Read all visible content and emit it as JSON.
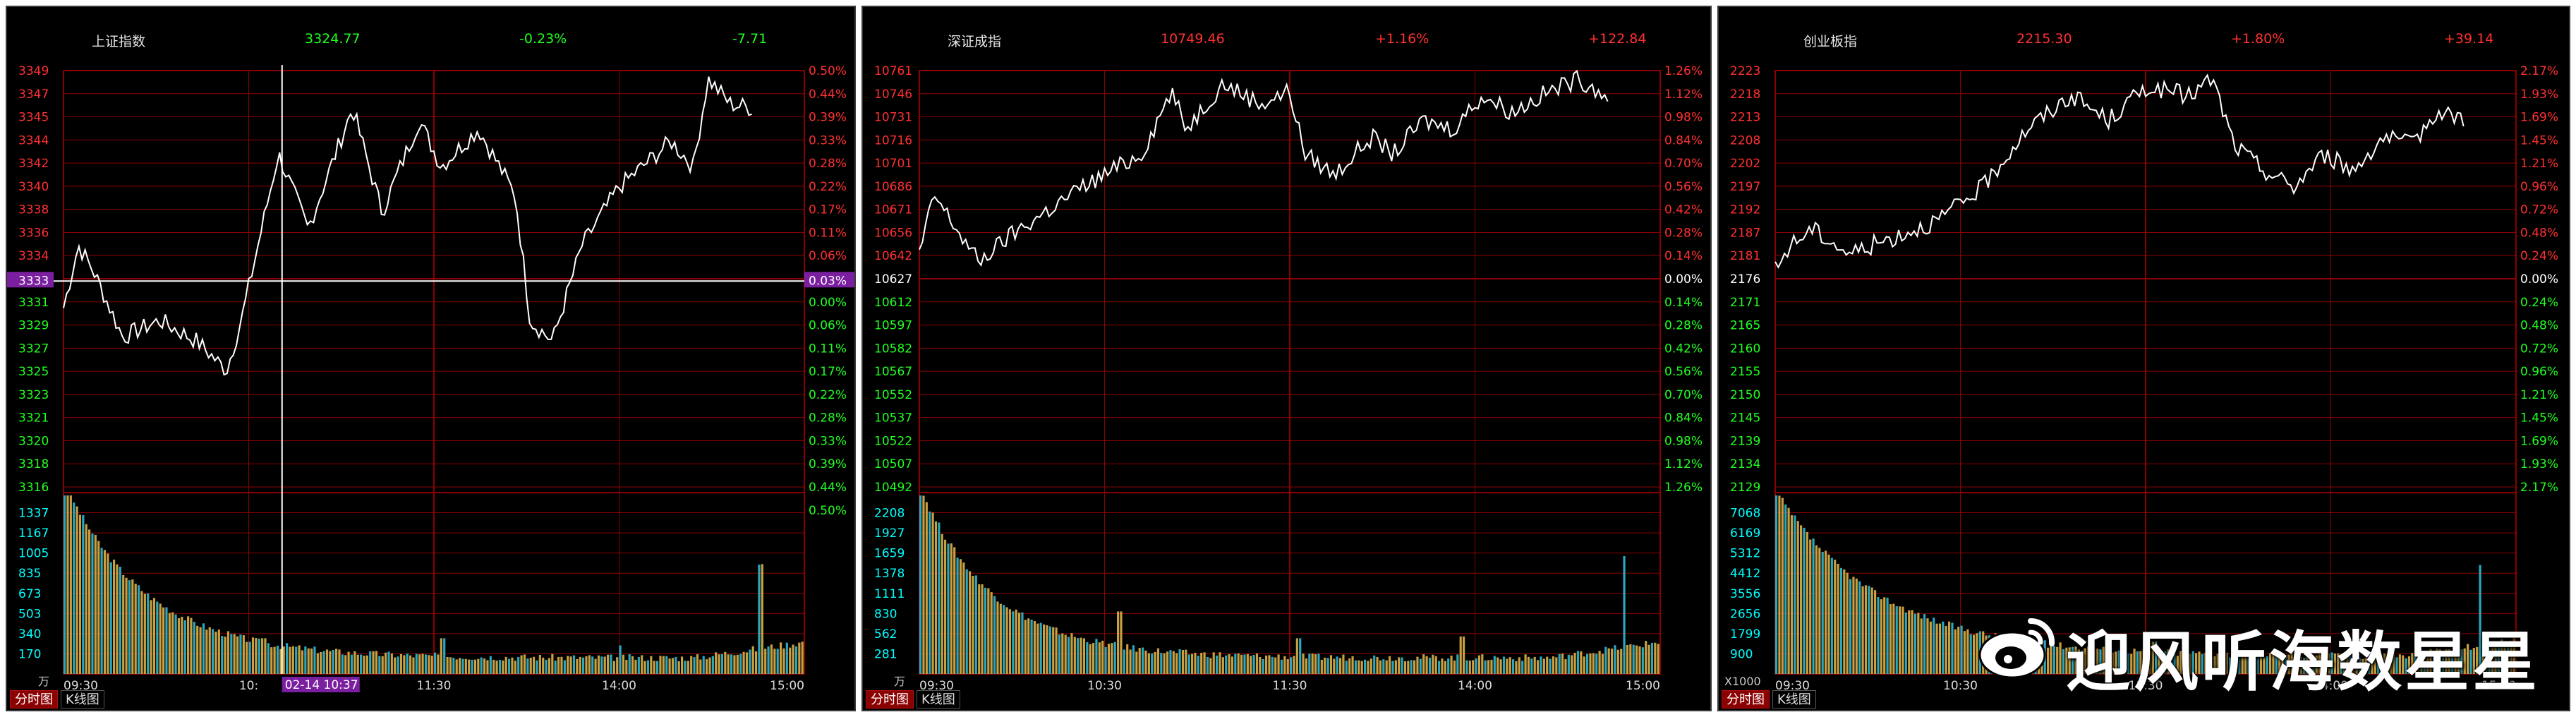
{
  "colors": {
    "up": "#ff3030",
    "down": "#20ff20",
    "grid": "#8b0000",
    "price_line": "#ffffff",
    "vol_label": "#00ffff",
    "vol_bar_a": "#c8a040",
    "vol_bar_b": "#2aa8c0"
  },
  "panels": [
    {
      "name": "上证指数",
      "last": "3324.77",
      "pct": "-0.23%",
      "chg": "-7.71",
      "quote_color": "#20ff20",
      "price_ticks": [
        "3349",
        "3347",
        "3345",
        "3344",
        "3342",
        "3340",
        "3338",
        "3336",
        "3334",
        "3332",
        "3331",
        "3329",
        "3327",
        "3325",
        "3323",
        "3321",
        "3320",
        "3318",
        "3316"
      ],
      "pct_ticks": [
        "0.50%",
        "0.44%",
        "0.39%",
        "0.33%",
        "0.28%",
        "0.22%",
        "0.17%",
        "0.11%",
        "0.06%",
        "0.03%",
        "0.00%",
        "0.06%",
        "0.11%",
        "0.17%",
        "0.22%",
        "0.28%",
        "0.33%",
        "0.39%",
        "0.44%",
        "0.50%"
      ],
      "highlight_price": "3333",
      "highlight_pct": "0.03%",
      "vol_ticks": [
        "1337",
        "1167",
        "1005",
        "835",
        "673",
        "503",
        "340",
        "170"
      ],
      "vol_unit": "万",
      "time_ticks": [
        "09:30",
        "10:",
        "11:30",
        "14:00",
        "15:00"
      ],
      "cursor_label": "02-14 10:37",
      "tabs": [
        "分时图",
        "K线图"
      ]
    },
    {
      "name": "深证成指",
      "last": "10749.46",
      "pct": "+1.16%",
      "chg": "+122.84",
      "quote_color": "#ff3030",
      "price_ticks": [
        "10761",
        "10746",
        "10731",
        "10716",
        "10701",
        "10686",
        "10671",
        "10656",
        "10642",
        "10627",
        "10612",
        "10597",
        "10582",
        "10567",
        "10552",
        "10537",
        "10522",
        "10507",
        "10492"
      ],
      "pct_ticks": [
        "1.26%",
        "1.12%",
        "0.98%",
        "0.84%",
        "0.70%",
        "0.56%",
        "0.42%",
        "0.28%",
        "0.14%",
        "0.00%",
        "0.14%",
        "0.28%",
        "0.42%",
        "0.56%",
        "0.70%",
        "0.84%",
        "0.98%",
        "1.12%",
        "1.26%"
      ],
      "vol_ticks": [
        "2208",
        "1927",
        "1659",
        "1378",
        "1111",
        "830",
        "562",
        "281"
      ],
      "vol_unit": "万",
      "time_ticks": [
        "09:30",
        "10:30",
        "11:30",
        "14:00",
        "15:00"
      ],
      "tabs": [
        "分时图",
        "K线图"
      ]
    },
    {
      "name": "创业板指",
      "last": "2215.30",
      "pct": "+1.80%",
      "chg": "+39.14",
      "quote_color": "#ff3030",
      "price_ticks": [
        "2223",
        "2218",
        "2213",
        "2208",
        "2202",
        "2197",
        "2192",
        "2187",
        "2181",
        "2176",
        "2171",
        "2165",
        "2160",
        "2155",
        "2150",
        "2145",
        "2139",
        "2134",
        "2129"
      ],
      "pct_ticks": [
        "2.17%",
        "1.93%",
        "1.69%",
        "1.45%",
        "1.21%",
        "0.96%",
        "0.72%",
        "0.48%",
        "0.24%",
        "0.00%",
        "0.24%",
        "0.48%",
        "0.72%",
        "0.96%",
        "1.21%",
        "1.45%",
        "1.69%",
        "1.93%",
        "2.17%"
      ],
      "vol_ticks": [
        "7068",
        "6169",
        "5312",
        "4412",
        "3556",
        "2656",
        "1799",
        "900"
      ],
      "vol_unit": "X1000",
      "time_ticks": [
        "09:30",
        "10:30",
        "11:30",
        "14:00",
        "15:00"
      ],
      "tabs": [
        "分时图",
        "K线图"
      ]
    }
  ],
  "watermark": {
    "text": "迎风听海数星星",
    "logo": "weibo-logo-icon"
  }
}
